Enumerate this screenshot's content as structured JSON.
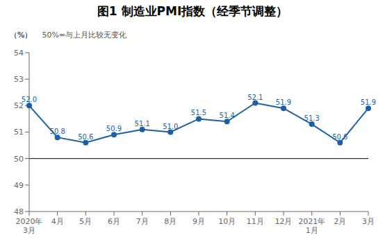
{
  "chart_data": {
    "type": "line",
    "title": "图1  制造业PMI指数（经季节调整）",
    "subtitle": "50%=与上月比较无变化",
    "ylabel": "（%）",
    "categories": [
      "2020年\n3月",
      "4月",
      "5月",
      "6月",
      "7月",
      "8月",
      "9月",
      "10月",
      "11月",
      "12月",
      "2021年\n1月",
      "2月",
      "3月"
    ],
    "values": [
      52.0,
      50.8,
      50.6,
      50.9,
      51.1,
      51.0,
      51.5,
      51.4,
      52.1,
      51.9,
      51.3,
      50.6,
      51.9
    ],
    "value_labels": [
      "52.0",
      "50.8",
      "50.6",
      "50.9",
      "51.1",
      "51.0",
      "51.5",
      "51.4",
      "52.1",
      "51.9",
      "51.3",
      "50.6",
      "51.9"
    ],
    "color": "#1a5fa8",
    "marker": "circle",
    "data_labels": true,
    "reference_line_y": 50,
    "ylim": [
      48,
      54
    ],
    "yticks": [
      48,
      49,
      50,
      51,
      52,
      53,
      54
    ],
    "grid": false
  }
}
